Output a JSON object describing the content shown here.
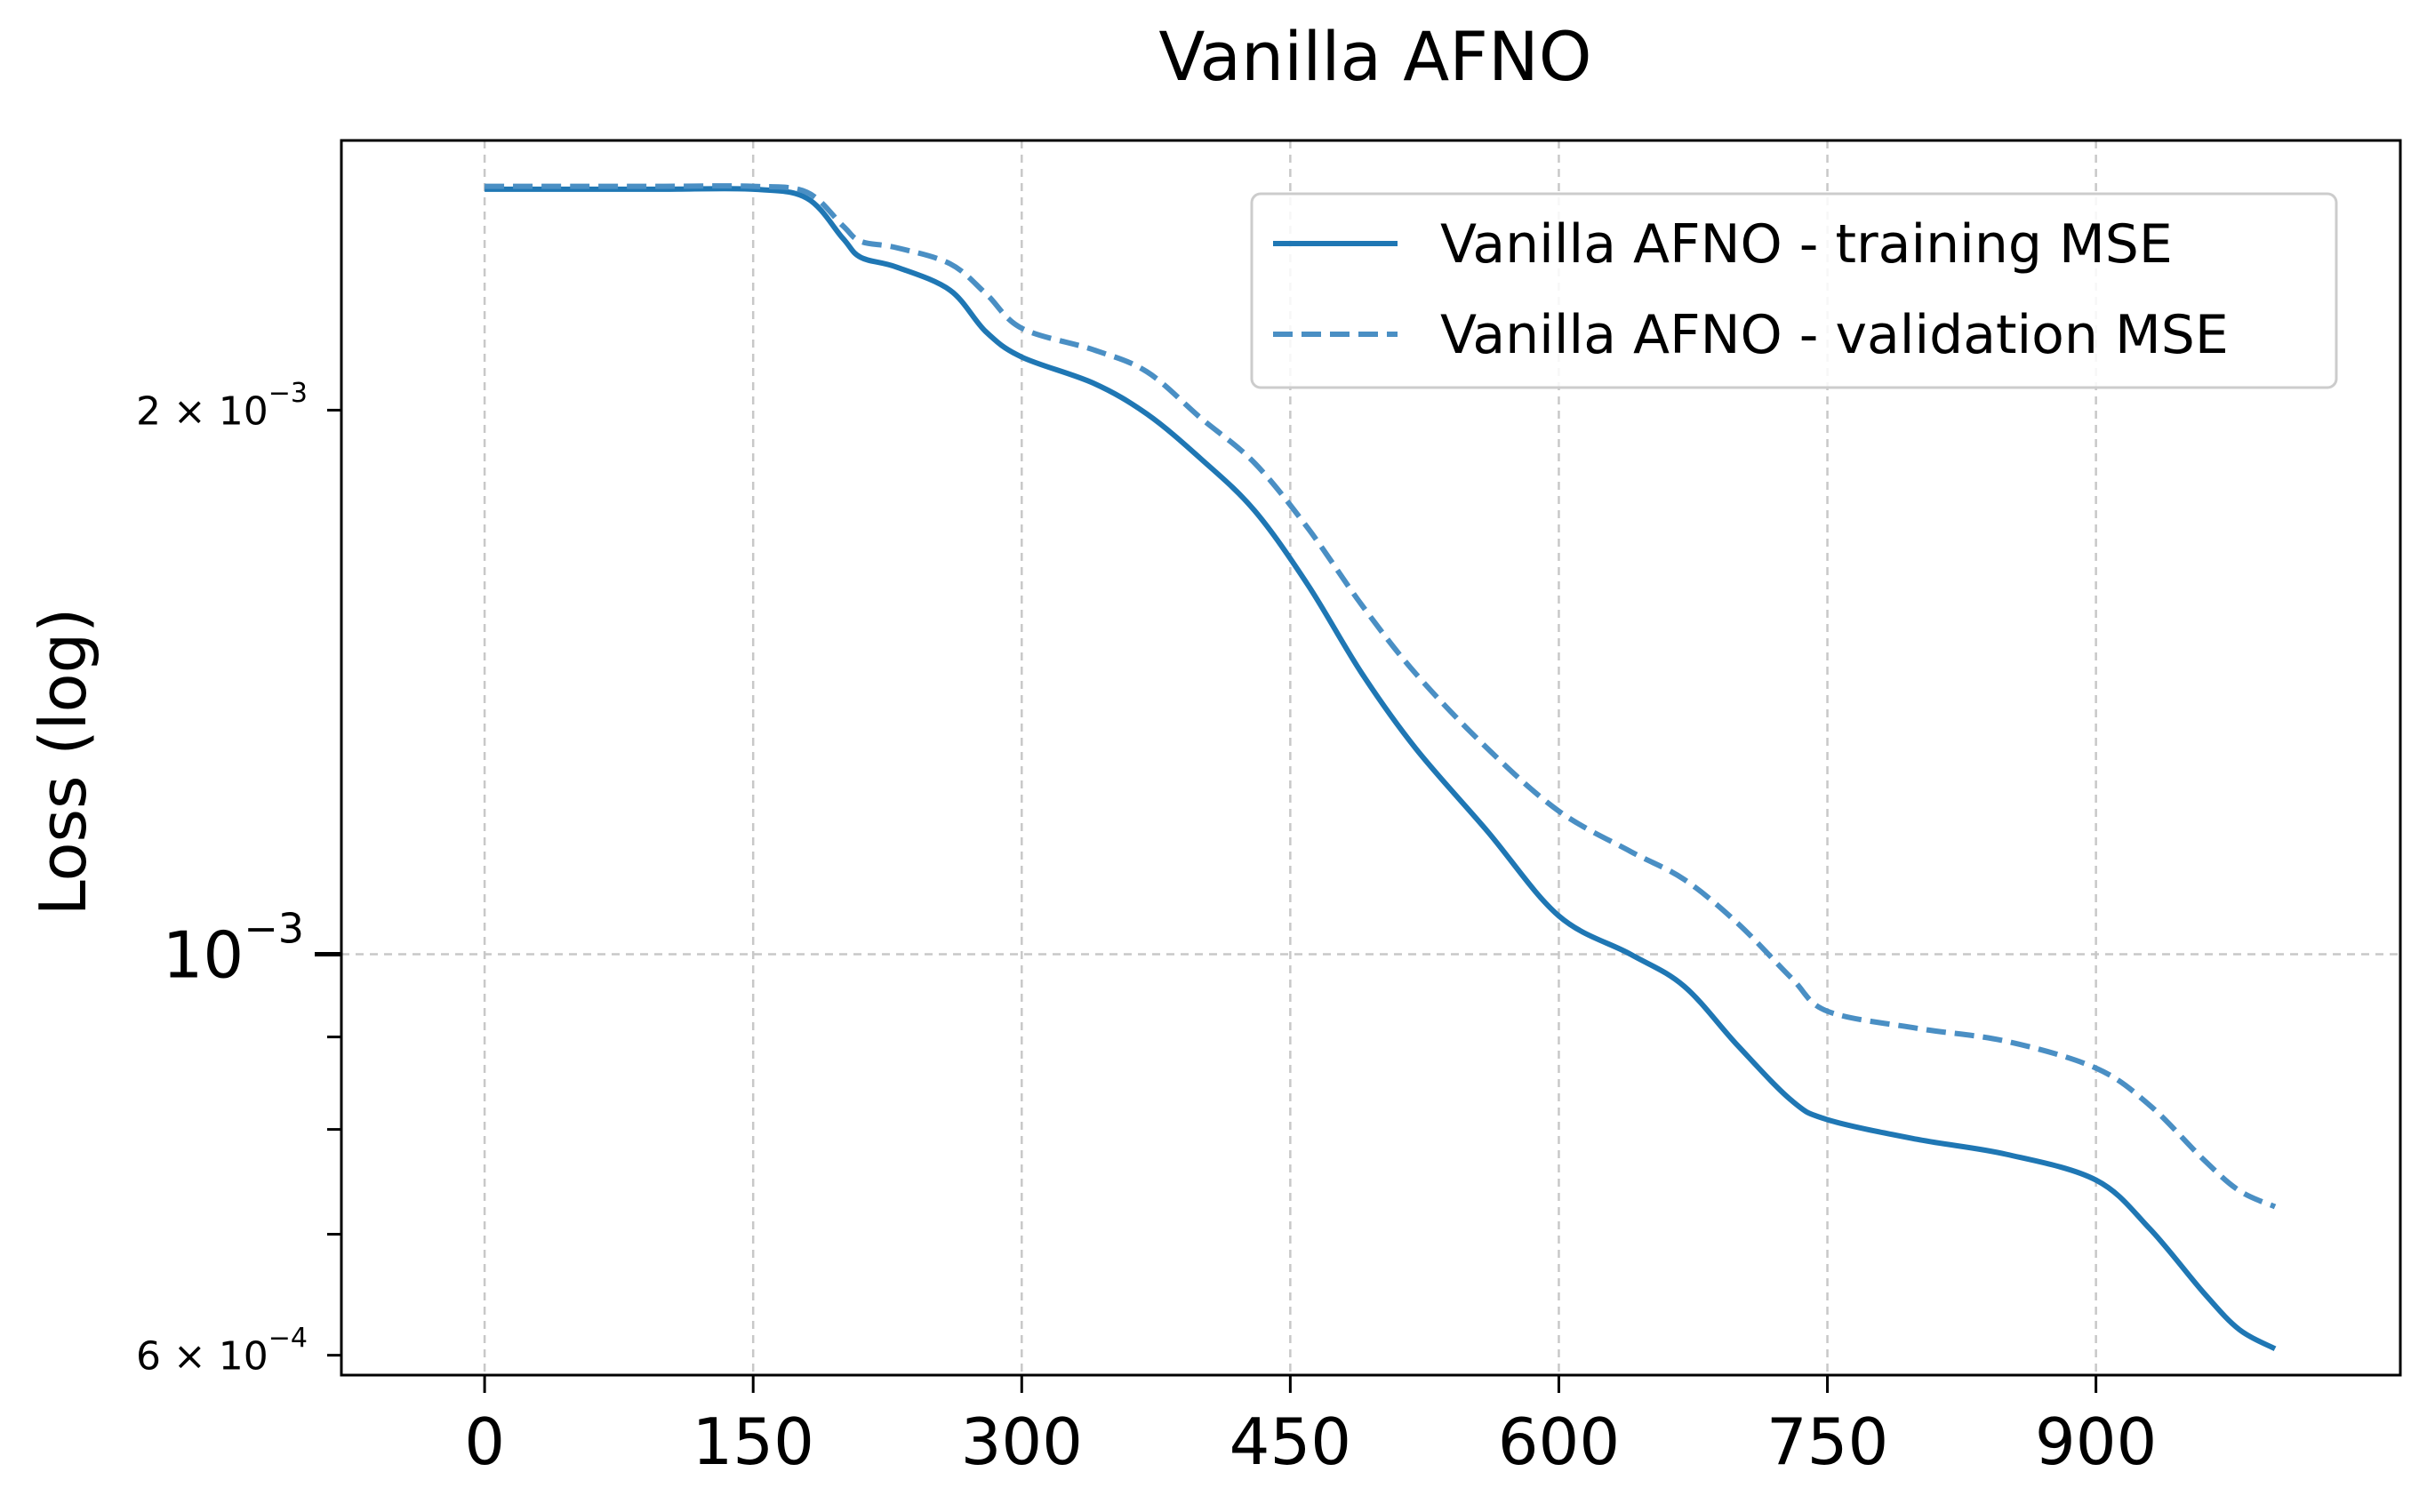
{
  "colors": {
    "training": "#1f77b4",
    "validation": "#4a8fc4",
    "grid": "#c8c8c8",
    "axes": "#000000"
  },
  "chart_data": {
    "type": "line",
    "title": "Vanilla AFNO",
    "xlabel": "",
    "ylabel": "Loss (log)",
    "yscale": "log",
    "grid": true,
    "legend_placement": "top-right",
    "xlim": [
      -80,
      1070
    ],
    "ylim": [
      0.000585,
      0.00282
    ],
    "x_ticks": [
      0,
      150,
      300,
      450,
      600,
      750,
      900
    ],
    "x_tick_labels": [
      "0",
      "150",
      "300",
      "450",
      "600",
      "750",
      "900"
    ],
    "y_major_ticks": [
      {
        "value": 0.001,
        "label": "10",
        "exp": "−3"
      }
    ],
    "y_minor_labeled_ticks": [
      {
        "value": 0.002,
        "label": "2 × 10",
        "exp": "−3"
      },
      {
        "value": 0.0006,
        "label": "6 × 10",
        "exp": "−4"
      }
    ],
    "y_minor_ticks": [
      0.0007,
      0.0008,
      0.0009
    ],
    "series": [
      {
        "name": "Vanilla AFNO - training MSE",
        "style": "solid",
        "x": [
          0,
          50,
          100,
          150,
          180,
          200,
          210,
          230,
          260,
          280,
          300,
          340,
          370,
          400,
          430,
          460,
          490,
          520,
          560,
          600,
          640,
          670,
          700,
          730,
          750,
          800,
          850,
          900,
          930,
          960,
          980,
          1000
        ],
        "y": [
          0.00265,
          0.00265,
          0.00265,
          0.00265,
          0.00262,
          0.00249,
          0.00243,
          0.0024,
          0.00233,
          0.00221,
          0.00214,
          0.00207,
          0.00199,
          0.00188,
          0.00176,
          0.0016,
          0.00143,
          0.0013,
          0.00117,
          0.00105,
          0.001,
          0.00096,
          0.00089,
          0.00083,
          0.00081,
          0.00079,
          0.000775,
          0.00075,
          0.000705,
          0.00065,
          0.00062,
          0.000605
        ]
      },
      {
        "name": "Vanilla AFNO - validation MSE",
        "style": "dashed",
        "x": [
          0,
          50,
          100,
          150,
          180,
          200,
          210,
          230,
          260,
          280,
          300,
          340,
          370,
          400,
          430,
          460,
          490,
          520,
          560,
          600,
          640,
          670,
          700,
          730,
          750,
          800,
          850,
          900,
          930,
          960,
          980,
          1000
        ],
        "y": [
          0.00266,
          0.00266,
          0.00266,
          0.00266,
          0.00264,
          0.00253,
          0.00248,
          0.00246,
          0.00241,
          0.00232,
          0.00222,
          0.00216,
          0.0021,
          0.00198,
          0.00187,
          0.00172,
          0.00156,
          0.00143,
          0.0013,
          0.0012,
          0.00114,
          0.0011,
          0.00104,
          0.00097,
          0.00093,
          0.00091,
          0.000895,
          0.000865,
          0.000825,
          0.00077,
          0.00074,
          0.000725
        ]
      }
    ]
  }
}
